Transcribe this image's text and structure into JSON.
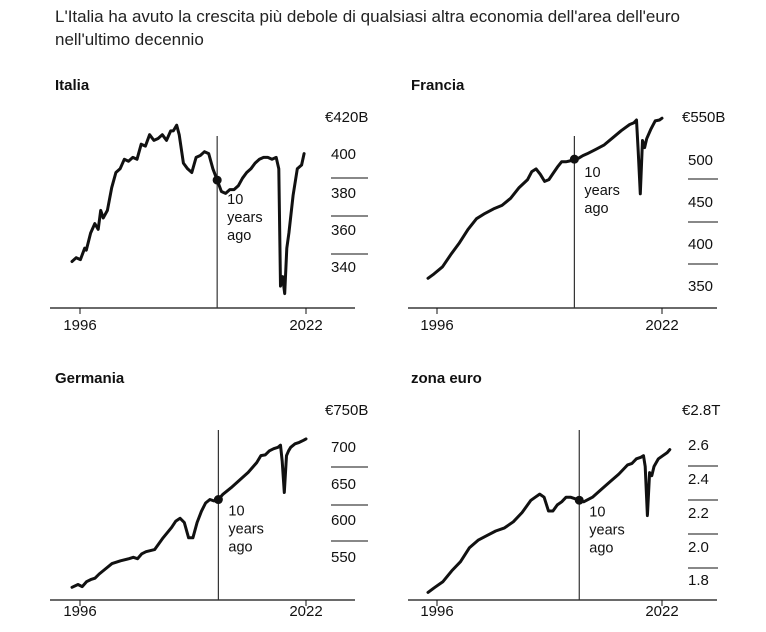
{
  "title": "L'Italia ha avuto la crescita più debole di qualsiasi altra economia dell'area dell'euro nell'ultimo decennio",
  "annotation_lines": [
    "10",
    "years",
    "ago"
  ],
  "chart_data": [
    {
      "type": "line",
      "title": "Italia",
      "x_ticks": [
        "1996",
        "2022"
      ],
      "xlim": [
        1995.3,
        2023.5
      ],
      "y_ticks": [
        "€420B",
        "400",
        "380",
        "360",
        "340"
      ],
      "y_tick_values": [
        420,
        400,
        380,
        360,
        340
      ],
      "ylim": [
        320,
        422
      ],
      "marker_x": 2012.5,
      "x": [
        1995.3,
        1995.8,
        1996.3,
        1996.8,
        1997.0,
        1997.5,
        1998.0,
        1998.4,
        1998.7,
        1999.0,
        1999.5,
        2000.0,
        2000.5,
        2001.0,
        2001.5,
        2002.0,
        2002.5,
        2003.0,
        2003.5,
        2004.0,
        2004.5,
        2005.0,
        2005.5,
        2006.0,
        2006.5,
        2007.0,
        2007.3,
        2007.7,
        2008.0,
        2008.5,
        2009.0,
        2009.5,
        2010.0,
        2010.5,
        2011.0,
        2011.5,
        2012.0,
        2012.5,
        2013.0,
        2013.5,
        2014.0,
        2014.5,
        2015.0,
        2015.5,
        2016.0,
        2016.5,
        2017.0,
        2017.5,
        2018.0,
        2018.5,
        2019.0,
        2019.5,
        2019.8,
        2020.0,
        2020.25,
        2020.5,
        2020.75,
        2021.0,
        2021.5,
        2022.0,
        2022.5,
        2022.8
      ],
      "y": [
        343,
        345,
        344,
        350,
        349,
        358,
        363,
        360,
        370,
        366,
        370,
        382,
        390,
        392,
        397,
        396,
        398,
        397,
        405,
        404,
        410,
        407,
        408,
        410,
        407,
        412,
        412,
        415,
        410,
        395,
        392,
        390,
        398,
        399,
        401,
        400,
        392,
        386,
        380,
        379,
        381,
        381,
        383,
        387,
        390,
        392,
        395,
        397,
        398,
        398,
        397,
        398,
        392,
        330,
        335,
        326,
        350,
        358,
        378,
        392,
        394,
        400
      ]
    },
    {
      "type": "line",
      "title": "Francia",
      "x_ticks": [
        "1996",
        "2022"
      ],
      "xlim": [
        1995.3,
        2023.5
      ],
      "y_ticks": [
        "€550B",
        "500",
        "450",
        "400",
        "350"
      ],
      "y_tick_values": [
        550,
        500,
        450,
        400,
        350
      ],
      "ylim": [
        335,
        552
      ],
      "marker_x": 2012.5,
      "x": [
        1995.3,
        1996.0,
        1997.0,
        1998.0,
        1999.0,
        2000.0,
        2001.0,
        2002.0,
        2003.0,
        2004.0,
        2005.0,
        2006.0,
        2007.0,
        2007.5,
        2008.0,
        2008.5,
        2009.0,
        2009.5,
        2010.0,
        2010.5,
        2011.0,
        2011.5,
        2012.0,
        2012.5,
        2013.0,
        2013.5,
        2014.0,
        2015.0,
        2016.0,
        2017.0,
        2018.0,
        2019.0,
        2019.5,
        2019.8,
        2020.0,
        2020.25,
        2020.5,
        2020.75,
        2021.0,
        2021.5,
        2022.0,
        2022.5,
        2022.8
      ],
      "y": [
        365,
        370,
        378,
        392,
        405,
        420,
        432,
        438,
        443,
        447,
        455,
        467,
        476,
        485,
        488,
        482,
        474,
        476,
        483,
        490,
        496,
        496,
        497,
        499,
        500,
        503,
        505,
        510,
        515,
        523,
        531,
        538,
        540,
        543,
        508,
        460,
        520,
        512,
        522,
        533,
        542,
        543,
        545
      ]
    },
    {
      "type": "line",
      "title": "Germania",
      "x_ticks": [
        "1996",
        "2022"
      ],
      "xlim": [
        1995.3,
        2023.5
      ],
      "y_ticks": [
        "€750B",
        "700",
        "650",
        "600",
        "550"
      ],
      "y_tick_values": [
        750,
        700,
        650,
        600,
        550
      ],
      "ylim": [
        505,
        752
      ],
      "marker_x": 2012.5,
      "x": [
        1995.3,
        1996.0,
        1996.5,
        1997.0,
        1997.5,
        1998.0,
        1998.5,
        1999.0,
        2000.0,
        2001.0,
        2002.0,
        2002.5,
        2003.0,
        2003.5,
        2004.0,
        2005.0,
        2006.0,
        2007.0,
        2007.5,
        2008.0,
        2008.5,
        2009.0,
        2009.5,
        2010.0,
        2010.5,
        2011.0,
        2011.5,
        2012.0,
        2012.5,
        2013.0,
        2014.0,
        2015.0,
        2016.0,
        2017.0,
        2017.5,
        2018.0,
        2018.5,
        2019.0,
        2019.5,
        2019.8,
        2020.0,
        2020.25,
        2020.5,
        2020.75,
        2021.0,
        2021.5,
        2022.0,
        2022.5,
        2022.8
      ],
      "y": [
        519,
        523,
        520,
        527,
        530,
        532,
        538,
        543,
        553,
        557,
        560,
        562,
        560,
        567,
        570,
        573,
        590,
        605,
        614,
        618,
        612,
        590,
        590,
        612,
        628,
        640,
        645,
        643,
        645,
        652,
        662,
        673,
        684,
        698,
        708,
        709,
        715,
        718,
        720,
        723,
        700,
        655,
        708,
        715,
        720,
        725,
        727,
        730,
        732
      ]
    },
    {
      "type": "line",
      "title": "zona euro",
      "x_ticks": [
        "1996",
        "2022"
      ],
      "xlim": [
        1995.3,
        2023.5
      ],
      "y_ticks": [
        "€2.8T",
        "2.6",
        "2.4",
        "2.2",
        "2.0",
        "1.8"
      ],
      "y_tick_values": [
        2.8,
        2.6,
        2.4,
        2.2,
        2.0,
        1.8
      ],
      "ylim": [
        1.7,
        2.82
      ],
      "marker_x": 2012.5,
      "x": [
        1995.3,
        1996.0,
        1997.0,
        1998.0,
        1999.0,
        2000.0,
        2001.0,
        2002.0,
        2003.0,
        2004.0,
        2005.0,
        2006.0,
        2007.0,
        2007.5,
        2008.0,
        2008.5,
        2009.0,
        2009.5,
        2010.0,
        2010.5,
        2011.0,
        2011.5,
        2012.0,
        2012.5,
        2013.0,
        2014.0,
        2015.0,
        2016.0,
        2017.0,
        2018.0,
        2018.5,
        2019.0,
        2019.5,
        2019.8,
        2020.0,
        2020.25,
        2020.5,
        2020.75,
        2021.0,
        2021.5,
        2022.0,
        2022.5,
        2022.8
      ],
      "y": [
        1.73,
        1.76,
        1.8,
        1.87,
        1.93,
        2.02,
        2.07,
        2.1,
        2.13,
        2.15,
        2.19,
        2.25,
        2.33,
        2.35,
        2.37,
        2.35,
        2.26,
        2.26,
        2.3,
        2.32,
        2.35,
        2.35,
        2.34,
        2.33,
        2.32,
        2.35,
        2.4,
        2.45,
        2.5,
        2.56,
        2.57,
        2.6,
        2.61,
        2.62,
        2.55,
        2.23,
        2.51,
        2.49,
        2.55,
        2.6,
        2.62,
        2.64,
        2.66
      ]
    }
  ]
}
